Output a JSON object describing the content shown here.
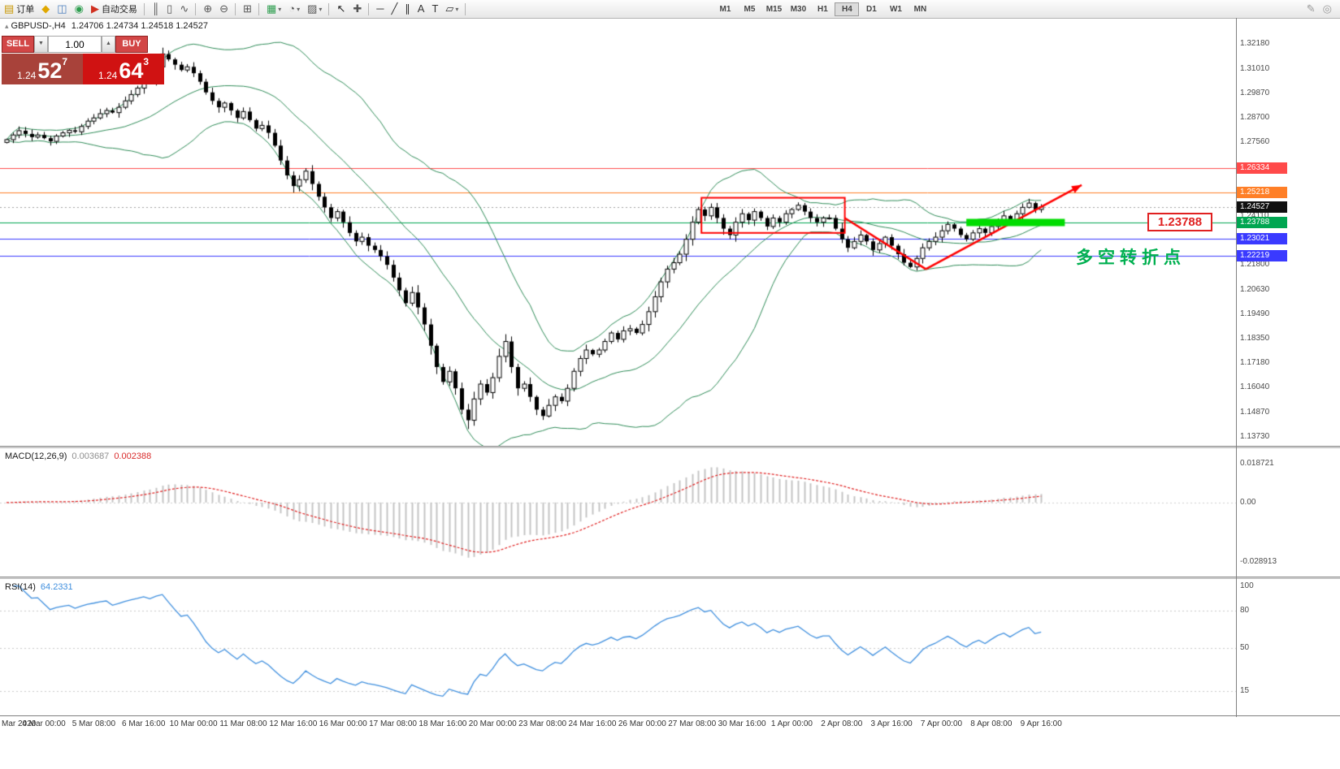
{
  "toolbar": {
    "items": [
      {
        "name": "new-order-button",
        "glyph": "▤",
        "color": "#c89600",
        "label": "订单"
      },
      {
        "name": "charts-icon",
        "glyph": "◆",
        "color": "#e0a800"
      },
      {
        "name": "profiles-icon",
        "glyph": "◫",
        "color": "#4a7dbd"
      },
      {
        "name": "help-icon",
        "glyph": "◉",
        "color": "#2e9e4f"
      },
      {
        "name": "autotrading-button",
        "glyph": "▶",
        "color": "#d03020",
        "label": "自动交易"
      },
      {
        "sep": true
      },
      {
        "name": "bar-chart-icon",
        "glyph": "║",
        "color": "#555555"
      },
      {
        "name": "candlestick-chart-icon",
        "glyph": "▯",
        "color": "#555555"
      },
      {
        "name": "line-chart-icon",
        "glyph": "∿",
        "color": "#555555"
      },
      {
        "sep": true
      },
      {
        "name": "zoom-in-icon",
        "glyph": "⊕",
        "color": "#555555"
      },
      {
        "name": "zoom-out-icon",
        "glyph": "⊖",
        "color": "#555555"
      },
      {
        "sep": true
      },
      {
        "name": "tile-windows-icon",
        "glyph": "⊞",
        "color": "#555555"
      },
      {
        "sep": true
      },
      {
        "name": "new-chart-button",
        "glyph": "▦",
        "color": "#2e9e4f",
        "dropdown": true
      },
      {
        "name": "period-cycle-button",
        "glyph": "◔",
        "color": "#555555",
        "dropdown": true
      },
      {
        "name": "templates-button",
        "glyph": "▨",
        "color": "#555555",
        "dropdown": true
      },
      {
        "sep": true
      },
      {
        "name": "cursor-icon",
        "glyph": "↖",
        "color": "#222222"
      },
      {
        "name": "crosshair-icon",
        "glyph": "✚",
        "color": "#555555"
      },
      {
        "sep": true
      },
      {
        "name": "horizontal-line-icon",
        "glyph": "─",
        "color": "#333333"
      },
      {
        "name": "trendline-icon",
        "glyph": "╱",
        "color": "#333333"
      },
      {
        "name": "equidistant-channel-icon",
        "glyph": "∥",
        "color": "#333333"
      },
      {
        "name": "text-label-icon",
        "glyph": "A",
        "color": "#333333"
      },
      {
        "name": "text-box-icon",
        "glyph": "T",
        "color": "#333333"
      },
      {
        "name": "shapes-button",
        "glyph": "▱",
        "color": "#333333",
        "dropdown": true
      },
      {
        "sep": true
      }
    ],
    "timeframes": [
      "M1",
      "M5",
      "M15",
      "M30",
      "H1",
      "H4",
      "D1",
      "W1",
      "MN"
    ],
    "active_timeframe": "H4",
    "right_icons": [
      {
        "name": "edit-icon",
        "glyph": "✎",
        "color": "#999999"
      },
      {
        "name": "target-icon",
        "glyph": "◎",
        "color": "#999999"
      }
    ]
  },
  "trade_panel": {
    "sell_button": "SELL",
    "buy_button": "BUY",
    "volume": "1.00",
    "spin_down": "▼",
    "spin_up": "▲",
    "sell_price": {
      "big": "1.24",
      "mid": "52",
      "sup": "7"
    },
    "buy_price": {
      "big": "1.24",
      "mid": "64",
      "sup": "3"
    },
    "colors": {
      "sell_panel": "#a8423a",
      "buy_panel": "#d01212",
      "button": "#d24646"
    }
  },
  "chart_header": {
    "icon": "▴",
    "symbol": "GBPUSD-,H4",
    "ohlc": "1.24706 1.24734 1.24518 1.24527"
  },
  "chart_data": {
    "type": "candlestick",
    "symbol": "GBPUSD",
    "timeframe": "H4",
    "ohlc_header": {
      "open": 1.24706,
      "high": 1.24734,
      "low": 1.24518,
      "close": 1.24527
    },
    "scale": {
      "pmax": 1.334,
      "pmin": 1.133
    },
    "price_axis_labels": [
      "1.32180",
      "1.31010",
      "1.29870",
      "1.28700",
      "1.27560",
      "1.26420",
      "1.25250",
      "1.24110",
      "1.22970",
      "1.21800",
      "1.20630",
      "1.19490",
      "1.18350",
      "1.17180",
      "1.16040",
      "1.14870",
      "1.13730"
    ],
    "levels": [
      {
        "price": 1.26334,
        "label": "1.26334",
        "color": "#ff4a4a"
      },
      {
        "price": 1.25218,
        "label": "1.25218",
        "color": "#ff7f27"
      },
      {
        "price": 1.23788,
        "label": "1.23788",
        "color": "#00a651"
      },
      {
        "price": 1.23021,
        "label": "1.23021",
        "color": "#3a3aff"
      },
      {
        "price": 1.22219,
        "label": "1.22219",
        "color": "#3a3aff"
      }
    ],
    "bid": {
      "price": 1.24527,
      "label": "1.24527",
      "badge_color": "#101010"
    },
    "candles": {
      "first_open": 1.2755,
      "closes": [
        1.2768,
        1.279,
        1.281,
        1.2795,
        1.278,
        1.279,
        1.2775,
        1.276,
        1.2785,
        1.28,
        1.2812,
        1.2805,
        1.283,
        1.2855,
        1.287,
        1.289,
        1.2905,
        1.2895,
        1.292,
        1.295,
        1.298,
        1.301,
        1.305,
        1.3045,
        1.311,
        1.317,
        1.3145,
        1.312,
        1.3095,
        1.311,
        1.308,
        1.304,
        1.299,
        1.295,
        1.292,
        1.294,
        1.2905,
        1.287,
        1.29,
        1.286,
        1.282,
        1.2835,
        1.28,
        1.274,
        1.267,
        1.26,
        1.255,
        1.258,
        1.262,
        1.256,
        1.25,
        1.245,
        1.24,
        1.243,
        1.238,
        1.233,
        1.229,
        1.231,
        1.227,
        1.225,
        1.222,
        1.218,
        1.212,
        1.206,
        1.2,
        1.205,
        1.198,
        1.19,
        1.18,
        1.17,
        1.163,
        1.168,
        1.16,
        1.15,
        1.145,
        1.155,
        1.162,
        1.158,
        1.165,
        1.175,
        1.182,
        1.17,
        1.16,
        1.162,
        1.156,
        1.15,
        1.147,
        1.152,
        1.156,
        1.154,
        1.16,
        1.168,
        1.174,
        1.178,
        1.176,
        1.178,
        1.182,
        1.186,
        1.183,
        1.187,
        1.188,
        1.186,
        1.19,
        1.196,
        1.203,
        1.21,
        1.216,
        1.219,
        1.223,
        1.23,
        1.238,
        1.244,
        1.241,
        1.245,
        1.24,
        1.235,
        1.232,
        1.238,
        1.242,
        1.239,
        1.243,
        1.24,
        1.236,
        1.24,
        1.238,
        1.242,
        1.244,
        1.246,
        1.243,
        1.24,
        1.238,
        1.24,
        1.24,
        1.235,
        1.23,
        1.226,
        1.229,
        1.232,
        1.229,
        1.225,
        1.228,
        1.231,
        1.227,
        1.223,
        1.219,
        1.217,
        1.221,
        1.226,
        1.229,
        1.231,
        1.234,
        1.237,
        1.235,
        1.232,
        1.23,
        1.233,
        1.235,
        1.233,
        1.236,
        1.239,
        1.241,
        1.239,
        1.242,
        1.245,
        1.247,
        1.244,
        1.24527
      ],
      "wick_overrides": {
        "25": {
          "high": 1.32
        },
        "74": {
          "low": 1.1409
        }
      }
    },
    "indicators": {
      "bollinger": {
        "period": 20,
        "deviation": 2,
        "color": "#2e8b57"
      },
      "macd": {
        "label": "MACD(12,26,9)",
        "value": "0.003687",
        "signal_value": "0.002388",
        "axis_labels": [
          "0.018721",
          "0.00",
          "-0.028913"
        ],
        "histogram_color": "#c4c4c4",
        "signal_color": "#e02020"
      },
      "rsi": {
        "label": "RSI(14)",
        "value": "64.2331",
        "axis_labels": [
          "100",
          "80",
          "50",
          "15"
        ],
        "levels": [
          80,
          50,
          15
        ],
        "color": "#3f8fde"
      }
    },
    "time_axis": [
      {
        "i": 0,
        "label": "Mar 2020"
      },
      {
        "i": 6,
        "label": "4 Mar 00:00"
      },
      {
        "i": 14,
        "label": "5 Mar 08:00"
      },
      {
        "i": 22,
        "label": "6 Mar 16:00"
      },
      {
        "i": 30,
        "label": "10 Mar 00:00"
      },
      {
        "i": 38,
        "label": "11 Mar 08:00"
      },
      {
        "i": 46,
        "label": "12 Mar 16:00"
      },
      {
        "i": 54,
        "label": "16 Mar 00:00"
      },
      {
        "i": 62,
        "label": "17 Mar 08:00"
      },
      {
        "i": 70,
        "label": "18 Mar 16:00"
      },
      {
        "i": 78,
        "label": "20 Mar 00:00"
      },
      {
        "i": 86,
        "label": "23 Mar 08:00"
      },
      {
        "i": 94,
        "label": "24 Mar 16:00"
      },
      {
        "i": 102,
        "label": "26 Mar 00:00"
      },
      {
        "i": 110,
        "label": "27 Mar 08:00"
      },
      {
        "i": 118,
        "label": "30 Mar 16:00"
      },
      {
        "i": 126,
        "label": "1 Apr 00:00"
      },
      {
        "i": 134,
        "label": "2 Apr 08:00"
      },
      {
        "i": 142,
        "label": "3 Apr 16:00"
      },
      {
        "i": 150,
        "label": "7 Apr 00:00"
      },
      {
        "i": 158,
        "label": "8 Apr 08:00"
      },
      {
        "i": 166,
        "label": "9 Apr 16:00"
      }
    ],
    "annotations": {
      "rectangle": {
        "i1": 111.5,
        "i2": 134.5,
        "p_low": 1.233,
        "p_high": 1.2495,
        "color": "#ff0000"
      },
      "trendline_color": "#ff0000",
      "trendlines": [
        {
          "i1": 134.5,
          "p1": 1.24,
          "i2": 147.5,
          "p2": 1.216,
          "arrow": false
        },
        {
          "i1": 147.5,
          "p1": 1.216,
          "i2": 172.5,
          "p2": 1.2555,
          "arrow": true
        }
      ],
      "support_bar": {
        "i1": 154,
        "i2": 169.8,
        "price": 1.23788,
        "color": "#00dc00",
        "thickness": 9
      },
      "callout": {
        "text": "1.23788",
        "color": "#e02020"
      },
      "note": {
        "text": "多空转折点",
        "color": "#00b050"
      }
    }
  }
}
